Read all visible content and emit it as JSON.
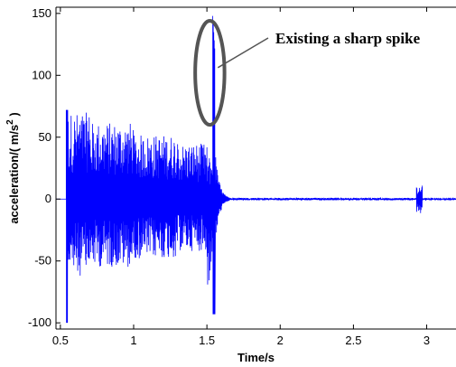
{
  "chart_data": {
    "type": "line",
    "title": "",
    "xlabel": "Time/s",
    "ylabel_main": "acceleration/( m/s",
    "ylabel_sup": "2",
    "ylabel_close": " )",
    "xlim": [
      0.47,
      3.2
    ],
    "ylim": [
      -105,
      155
    ],
    "xticks": [
      0.5,
      1,
      1.5,
      2,
      2.5,
      3
    ],
    "xtick_labels": [
      "0.5",
      "1",
      "1.5",
      "2",
      "2.5",
      "3"
    ],
    "yticks": [
      -100,
      -50,
      0,
      50,
      100,
      150
    ],
    "ytick_labels": [
      "-100",
      "-50",
      "0",
      "50",
      "100",
      "150"
    ],
    "grid": false,
    "series_color": "#0000ff",
    "series": [
      {
        "segments": [
          {
            "x_start": 0.47,
            "x_end": 0.54,
            "amplitude": 0
          },
          {
            "x_start": 0.54,
            "x_end": 0.55,
            "amplitude_max": 72,
            "amplitude_min": -100
          },
          {
            "x_start": 0.55,
            "x_end": 0.7,
            "envelope_pos": 70,
            "envelope_neg": -62
          },
          {
            "x_start": 0.7,
            "x_end": 1.0,
            "envelope_pos": 62,
            "envelope_neg": -55
          },
          {
            "x_start": 1.0,
            "x_end": 1.3,
            "envelope_pos": 52,
            "envelope_neg": -48
          },
          {
            "x_start": 1.3,
            "x_end": 1.5,
            "envelope_pos": 45,
            "envelope_neg": -42
          },
          {
            "x_start": 1.5,
            "x_end": 1.54,
            "envelope_pos": 35,
            "envelope_neg": -70
          },
          {
            "x_start": 1.54,
            "x_end": 1.555,
            "spike_max": 148,
            "spike_min": -93
          },
          {
            "x_start": 1.56,
            "x_end": 1.7,
            "decay_from": 35
          },
          {
            "x_start": 1.7,
            "x_end": 2.93,
            "amplitude": 1
          },
          {
            "x_start": 2.93,
            "x_end": 2.97,
            "envelope_pos": 11,
            "envelope_neg": -12
          },
          {
            "x_start": 2.97,
            "x_end": 3.2,
            "amplitude": 0.5
          }
        ]
      }
    ],
    "annotation": {
      "text": "Existing a sharp spike",
      "ellipse_center": [
        1.52,
        102
      ],
      "ellipse_radius_x_data": 0.1,
      "ellipse_radius_y_data": 42
    }
  }
}
